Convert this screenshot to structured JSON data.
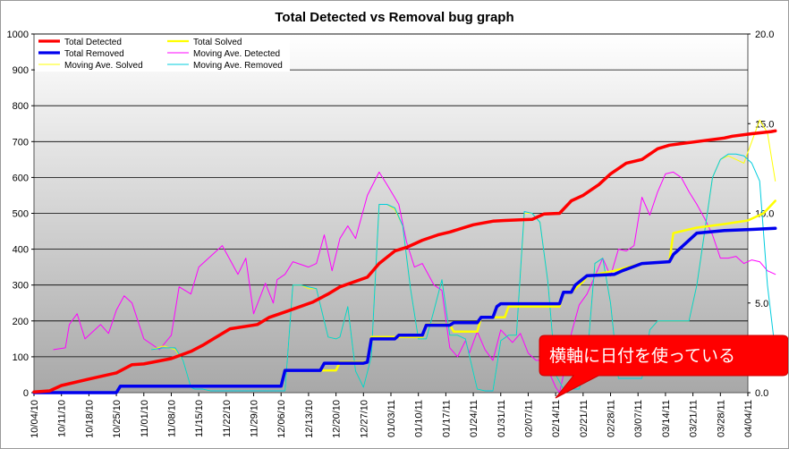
{
  "chart_data": {
    "type": "line",
    "title": "Total Detected vs Removal bug graph",
    "xlabel": "",
    "ylabel": "",
    "x_tick_labels": [
      "10/04/10",
      "10/11/10",
      "10/18/10",
      "10/25/10",
      "11/01/10",
      "11/08/10",
      "11/15/10",
      "11/22/10",
      "11/29/10",
      "12/06/10",
      "12/13/10",
      "12/20/10",
      "12/27/10",
      "01/03/11",
      "01/10/11",
      "01/17/11",
      "01/24/11",
      "01/31/11",
      "02/07/11",
      "02/14/11",
      "02/21/11",
      "02/28/11",
      "03/07/11",
      "03/14/11",
      "03/21/11",
      "03/28/11",
      "04/04/11"
    ],
    "ylim": [
      0,
      1000
    ],
    "y_ticks": [
      0,
      100,
      200,
      300,
      400,
      500,
      600,
      700,
      800,
      900,
      1000
    ],
    "y2lim": [
      0,
      20
    ],
    "y2_tick_labels": [
      "0.0",
      "5.0",
      "10.0",
      "15.0",
      "20.0"
    ],
    "grid": "horizontal",
    "legend_position": "top-left",
    "series": [
      {
        "name": "Total Detected",
        "axis": "left",
        "color": "#ff0000",
        "width": 3.5,
        "x": [
          0,
          4,
          7,
          14,
          21,
          25,
          28,
          35,
          40,
          43,
          50,
          57,
          60,
          64,
          71,
          75,
          78,
          85,
          88,
          92,
          95,
          99,
          103,
          106,
          112,
          117,
          120,
          124,
          127,
          130,
          134,
          137,
          140,
          144,
          147,
          151,
          155,
          159,
          162,
          169,
          176,
          178,
          183,
          188,
          189
        ],
        "y": [
          2,
          5,
          20,
          38,
          55,
          78,
          80,
          95,
          115,
          132,
          178,
          190,
          210,
          225,
          252,
          275,
          295,
          322,
          360,
          395,
          405,
          425,
          440,
          448,
          468,
          478,
          480,
          482,
          483,
          498,
          500,
          535,
          550,
          580,
          610,
          640,
          650,
          680,
          690,
          700,
          710,
          715,
          722,
          728,
          730
        ]
      },
      {
        "name": "Total Solved",
        "axis": "left",
        "color": "#ffff00",
        "width": 2.5,
        "x": [
          0,
          21,
          22,
          63,
          64,
          77,
          78,
          85,
          86,
          99,
          100,
          106,
          107,
          113,
          114,
          120,
          121,
          134,
          135,
          137,
          140,
          141,
          148,
          155,
          162,
          163,
          169,
          176,
          182,
          186,
          189
        ],
        "y": [
          0,
          0,
          18,
          18,
          62,
          62,
          85,
          85,
          155,
          155,
          190,
          190,
          170,
          170,
          210,
          210,
          240,
          240,
          280,
          280,
          310,
          325,
          340,
          360,
          365,
          445,
          460,
          470,
          480,
          500,
          535
        ]
      },
      {
        "name": "Total Removed",
        "axis": "left",
        "color": "#0000ee",
        "width": 3.5,
        "x": [
          0,
          21,
          22,
          63,
          64,
          73,
          74,
          84,
          85,
          86,
          92,
          93,
          99,
          100,
          106,
          107,
          113,
          114,
          117,
          118,
          119,
          134,
          135,
          137,
          138,
          141,
          148,
          150,
          155,
          162,
          163,
          169,
          176,
          183,
          189
        ],
        "y": [
          0,
          0,
          18,
          18,
          62,
          62,
          82,
          82,
          85,
          150,
          150,
          160,
          160,
          188,
          188,
          195,
          195,
          210,
          210,
          240,
          248,
          248,
          280,
          280,
          300,
          326,
          330,
          340,
          360,
          365,
          385,
          445,
          452,
          455,
          458
        ]
      },
      {
        "name": "Moving Ave. Detected",
        "axis": "right",
        "color": "#ff00ff",
        "width": 1,
        "x": [
          5,
          8,
          9,
          11,
          13,
          17,
          19,
          21,
          23,
          25,
          28,
          32,
          35,
          37,
          40,
          42,
          48,
          52,
          54,
          56,
          59,
          61,
          62,
          64,
          66,
          70,
          72,
          74,
          76,
          78,
          80,
          82,
          85,
          88,
          90,
          93,
          95,
          97,
          99,
          102,
          104,
          106,
          108,
          110,
          111,
          113,
          115,
          117,
          119,
          122,
          124,
          126,
          128,
          130,
          132,
          133,
          134,
          135,
          137,
          139,
          141,
          143,
          145,
          147,
          149,
          151,
          153,
          155,
          157,
          159,
          161,
          163,
          165,
          167,
          169,
          171,
          173,
          175,
          177,
          179,
          181,
          183,
          185,
          187,
          189
        ],
        "y": [
          2.4,
          2.5,
          3.8,
          4.4,
          3.0,
          3.8,
          3.3,
          4.6,
          5.4,
          5.0,
          3.0,
          2.4,
          3.2,
          5.9,
          5.5,
          7.0,
          8.2,
          6.6,
          7.5,
          4.4,
          6.1,
          5.0,
          6.3,
          6.6,
          7.3,
          7.0,
          7.2,
          8.8,
          6.8,
          8.6,
          9.3,
          8.6,
          11.0,
          12.3,
          11.6,
          10.5,
          8.4,
          7.0,
          7.2,
          6.0,
          5.7,
          2.5,
          2.0,
          2.9,
          2.2,
          3.4,
          2.4,
          1.8,
          3.5,
          2.8,
          3.3,
          2.2,
          1.8,
          1.8,
          0.8,
          0.3,
          0.0,
          1.0,
          3.3,
          4.9,
          5.5,
          6.5,
          7.5,
          6.5,
          8.0,
          7.9,
          8.2,
          10.9,
          9.9,
          11.2,
          12.2,
          12.3,
          12.0,
          11.2,
          10.5,
          9.7,
          8.8,
          7.5,
          7.5,
          7.6,
          7.2,
          7.4,
          7.3,
          6.8,
          6.6
        ]
      },
      {
        "name": "Moving Ave. Solved",
        "axis": "right",
        "color": "#ffff00",
        "width": 1,
        "x": [
          30,
          33,
          36,
          38,
          40,
          41,
          43,
          45,
          47,
          49,
          52,
          55,
          57,
          60,
          62,
          64,
          66,
          68,
          70,
          72,
          75,
          77,
          78,
          80,
          82,
          84,
          86,
          88,
          90,
          92,
          94,
          96,
          98,
          100,
          102,
          104,
          106,
          108,
          110,
          113,
          115,
          117,
          119,
          121,
          123,
          125,
          127,
          129,
          131,
          133,
          135,
          137,
          139,
          141,
          143,
          145,
          147,
          149,
          151,
          153,
          155,
          157,
          159,
          161,
          163,
          165,
          167,
          169,
          171,
          173,
          175,
          177,
          179,
          181,
          183,
          185,
          187,
          189
        ],
        "y": [
          2.4,
          2.6,
          2.4,
          1.8,
          0.3,
          0.2,
          0.2,
          0.1,
          0.1,
          0.1,
          0.1,
          0.1,
          0.1,
          0.1,
          0.1,
          0.1,
          6.0,
          6.0,
          5.8,
          5.8,
          3.1,
          3.0,
          3.1,
          4.8,
          1.2,
          0.3,
          2.0,
          10.5,
          10.5,
          10.2,
          9.3,
          5.8,
          3.0,
          3.0,
          4.6,
          6.3,
          3.2,
          3.2,
          3.0,
          0.2,
          0.1,
          0.1,
          2.9,
          3.2,
          3.2,
          10.0,
          10.0,
          9.5,
          6.2,
          1.0,
          0.2,
          0.2,
          0.2,
          1.8,
          7.2,
          7.5,
          5.0,
          0.8,
          0.8,
          0.8,
          0.8,
          3.5,
          4.0,
          4.0,
          4.0,
          4.0,
          4.0,
          6.0,
          9.0,
          12.0,
          13.0,
          13.2,
          13.0,
          12.8,
          14.0,
          15.2,
          14.5,
          11.8
        ]
      },
      {
        "name": "Moving Ave. Removed",
        "axis": "right",
        "color": "#00ccdd",
        "width": 1,
        "x": [
          30,
          33,
          36,
          38,
          40,
          41,
          43,
          45,
          47,
          49,
          52,
          55,
          57,
          60,
          62,
          64,
          66,
          68,
          70,
          72,
          75,
          77,
          78,
          80,
          82,
          84,
          86,
          88,
          90,
          92,
          94,
          96,
          98,
          100,
          102,
          104,
          106,
          108,
          110,
          113,
          115,
          117,
          119,
          121,
          123,
          125,
          127,
          129,
          131,
          133,
          135,
          137,
          139,
          141,
          143,
          145,
          147,
          149,
          151,
          153,
          155,
          157,
          159,
          161,
          163,
          165,
          167,
          169,
          171,
          173,
          175,
          177,
          179,
          181,
          183,
          185,
          187,
          189
        ],
        "y": [
          2.4,
          2.5,
          2.5,
          1.8,
          0.3,
          0.2,
          0.2,
          0.1,
          0.1,
          0.1,
          0.1,
          0.1,
          0.1,
          0.1,
          0.1,
          0.1,
          6.0,
          6.0,
          5.9,
          5.8,
          3.1,
          3.0,
          3.1,
          4.8,
          1.2,
          0.3,
          2.0,
          10.5,
          10.5,
          10.3,
          9.3,
          5.8,
          3.0,
          3.0,
          4.6,
          6.3,
          3.2,
          3.2,
          3.0,
          0.2,
          0.1,
          0.1,
          2.9,
          3.2,
          3.2,
          10.1,
          10.0,
          9.5,
          6.2,
          1.0,
          0.2,
          0.2,
          0.2,
          1.8,
          7.2,
          7.5,
          5.0,
          0.8,
          0.8,
          0.8,
          0.8,
          3.5,
          4.0,
          4.0,
          4.0,
          4.0,
          4.0,
          6.0,
          9.0,
          12.0,
          13.0,
          13.3,
          13.3,
          13.2,
          12.8,
          11.8,
          6.0,
          2.3
        ]
      }
    ]
  },
  "callout": {
    "text": "横軸に日付を使っている",
    "color": "#ff0000"
  }
}
